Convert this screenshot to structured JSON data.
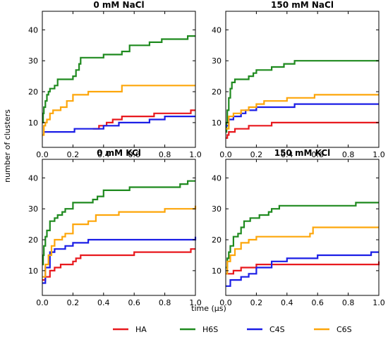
{
  "figure": {
    "ylabel": "number of clusters",
    "xlabel": "time (μs)"
  },
  "legend": [
    {
      "name": "HA",
      "color": "#e8191e"
    },
    {
      "name": "H6S",
      "color": "#1f8a1f"
    },
    {
      "name": "C4S",
      "color": "#1b1ee6"
    },
    {
      "name": "C6S",
      "color": "#fda60a"
    }
  ],
  "chart_data": [
    {
      "type": "line",
      "title": "0 mM NaCl",
      "xlim": [
        0,
        1.0
      ],
      "ylim": [
        2,
        46
      ],
      "xticks": [
        0,
        0.2,
        0.4,
        0.6,
        0.8,
        1.0
      ],
      "yticks": [
        10,
        20,
        30,
        40
      ],
      "series": [
        {
          "name": "HA",
          "color": "#e8191e",
          "x": [
            0.33,
            0.37,
            0.42,
            0.46,
            0.52,
            0.73,
            0.97,
            1.0
          ],
          "y": [
            8,
            9,
            10,
            11,
            12,
            13,
            14,
            14
          ]
        },
        {
          "name": "H6S",
          "color": "#1f8a1f",
          "x": [
            0,
            0.005,
            0.01,
            0.02,
            0.03,
            0.04,
            0.05,
            0.06,
            0.08,
            0.1,
            0.15,
            0.2,
            0.22,
            0.24,
            0.25,
            0.36,
            0.4,
            0.48,
            0.52,
            0.57,
            0.65,
            0.7,
            0.78,
            0.85,
            0.95,
            1.0
          ],
          "y": [
            10,
            13,
            15,
            17,
            19,
            20,
            21,
            21,
            22,
            24,
            24,
            25,
            27,
            29,
            31,
            31,
            32,
            32,
            33,
            35,
            35,
            36,
            37,
            37,
            38,
            38
          ]
        },
        {
          "name": "C4S",
          "color": "#1b1ee6",
          "x": [
            0.01,
            0.2,
            0.21,
            0.4,
            0.5,
            0.7,
            0.8,
            1.0
          ],
          "y": [
            7,
            7,
            8,
            9,
            10,
            11,
            12,
            12
          ]
        },
        {
          "name": "C6S",
          "color": "#fda60a",
          "x": [
            0,
            0.01,
            0.02,
            0.03,
            0.05,
            0.07,
            0.12,
            0.16,
            0.2,
            0.3,
            0.52,
            0.6,
            1.0
          ],
          "y": [
            6,
            9,
            10,
            11,
            13,
            14,
            15,
            17,
            19,
            20,
            22,
            22,
            22
          ]
        }
      ]
    },
    {
      "type": "line",
      "title": "150 mM NaCl",
      "xlim": [
        0,
        1.0
      ],
      "ylim": [
        2,
        46
      ],
      "xticks": [
        0,
        0.2,
        0.4,
        0.6,
        0.8,
        1.0
      ],
      "yticks": [
        10,
        20,
        30,
        40
      ],
      "series": [
        {
          "name": "HA",
          "color": "#e8191e",
          "x": [
            0,
            0.01,
            0.02,
            0.06,
            0.15,
            0.3,
            1.0
          ],
          "y": [
            5,
            6,
            7,
            8,
            9,
            10,
            10
          ]
        },
        {
          "name": "H6S",
          "color": "#1f8a1f",
          "x": [
            0,
            0.005,
            0.01,
            0.02,
            0.03,
            0.04,
            0.06,
            0.1,
            0.15,
            0.18,
            0.2,
            0.3,
            0.38,
            0.45,
            1.0
          ],
          "y": [
            7,
            10,
            14,
            18,
            21,
            23,
            24,
            24,
            25,
            26,
            27,
            28,
            29,
            30,
            30
          ]
        },
        {
          "name": "C4S",
          "color": "#1b1ee6",
          "x": [
            0,
            0.02,
            0.05,
            0.1,
            0.13,
            0.2,
            0.27,
            0.4,
            0.45,
            1.0
          ],
          "y": [
            9,
            11,
            12,
            13,
            14,
            15,
            15,
            15,
            16,
            16
          ]
        },
        {
          "name": "C6S",
          "color": "#fda60a",
          "x": [
            0,
            0.02,
            0.05,
            0.1,
            0.15,
            0.2,
            0.25,
            0.4,
            0.58,
            1.0
          ],
          "y": [
            8,
            12,
            13,
            14,
            15,
            16,
            17,
            18,
            19,
            19
          ]
        }
      ]
    },
    {
      "type": "line",
      "title": "0 mM KCl",
      "xlim": [
        0,
        1.0
      ],
      "ylim": [
        2,
        46
      ],
      "xticks": [
        0,
        0.2,
        0.4,
        0.6,
        0.8,
        1.0
      ],
      "yticks": [
        10,
        20,
        30,
        40
      ],
      "series": [
        {
          "name": "HA",
          "color": "#e8191e",
          "x": [
            0,
            0.02,
            0.05,
            0.08,
            0.12,
            0.2,
            0.22,
            0.25,
            0.3,
            0.5,
            0.6,
            0.9,
            0.97,
            1.0
          ],
          "y": [
            7,
            8,
            10,
            11,
            12,
            13,
            14,
            15,
            15,
            15,
            16,
            16,
            17,
            17
          ]
        },
        {
          "name": "H6S",
          "color": "#1f8a1f",
          "x": [
            0,
            0.005,
            0.01,
            0.02,
            0.03,
            0.05,
            0.08,
            0.1,
            0.13,
            0.15,
            0.2,
            0.33,
            0.36,
            0.4,
            0.55,
            0.57,
            0.9,
            0.95,
            1.0
          ],
          "y": [
            12,
            15,
            18,
            21,
            23,
            26,
            27,
            28,
            29,
            30,
            32,
            33,
            34,
            36,
            36,
            37,
            38,
            39,
            39
          ]
        },
        {
          "name": "C4S",
          "color": "#1b1ee6",
          "x": [
            0,
            0.02,
            0.05,
            0.08,
            0.15,
            0.2,
            0.3,
            0.97,
            1.0
          ],
          "y": [
            6,
            11,
            16,
            17,
            18,
            19,
            20,
            20,
            21
          ]
        },
        {
          "name": "C6S",
          "color": "#fda60a",
          "x": [
            0,
            0.02,
            0.04,
            0.06,
            0.08,
            0.13,
            0.15,
            0.2,
            0.3,
            0.35,
            0.5,
            0.55,
            0.8,
            1.0
          ],
          "y": [
            8,
            12,
            15,
            18,
            20,
            21,
            22,
            25,
            26,
            28,
            29,
            29,
            30,
            31
          ]
        }
      ]
    },
    {
      "type": "line",
      "title": "150 mM KCl",
      "xlim": [
        0,
        1.0
      ],
      "ylim": [
        2,
        46
      ],
      "xticks": [
        0,
        0.2,
        0.4,
        0.6,
        0.8,
        1.0
      ],
      "yticks": [
        10,
        20,
        30,
        40
      ],
      "series": [
        {
          "name": "HA",
          "color": "#e8191e",
          "x": [
            0,
            0.01,
            0.05,
            0.1,
            0.2,
            0.35,
            0.98,
            1.0
          ],
          "y": [
            9,
            9,
            10,
            11,
            12,
            12,
            12,
            13
          ]
        },
        {
          "name": "H6S",
          "color": "#1f8a1f",
          "x": [
            0,
            0.01,
            0.02,
            0.03,
            0.05,
            0.08,
            0.1,
            0.12,
            0.16,
            0.22,
            0.28,
            0.3,
            0.35,
            0.8,
            0.85,
            1.0
          ],
          "y": [
            11,
            14,
            16,
            18,
            21,
            22,
            24,
            26,
            27,
            28,
            29,
            30,
            31,
            31,
            32,
            32
          ]
        },
        {
          "name": "C4S",
          "color": "#1b1ee6",
          "x": [
            0,
            0.03,
            0.1,
            0.15,
            0.2,
            0.26,
            0.3,
            0.4,
            0.6,
            0.75,
            0.95,
            1.0
          ],
          "y": [
            5,
            7,
            8,
            9,
            11,
            11,
            13,
            14,
            15,
            15,
            16,
            16
          ]
        },
        {
          "name": "C6S",
          "color": "#fda60a",
          "x": [
            0,
            0.01,
            0.03,
            0.06,
            0.1,
            0.15,
            0.2,
            0.3,
            0.55,
            0.57,
            1.0
          ],
          "y": [
            9,
            13,
            15,
            17,
            19,
            20,
            21,
            21,
            22,
            24,
            24
          ]
        }
      ]
    }
  ]
}
